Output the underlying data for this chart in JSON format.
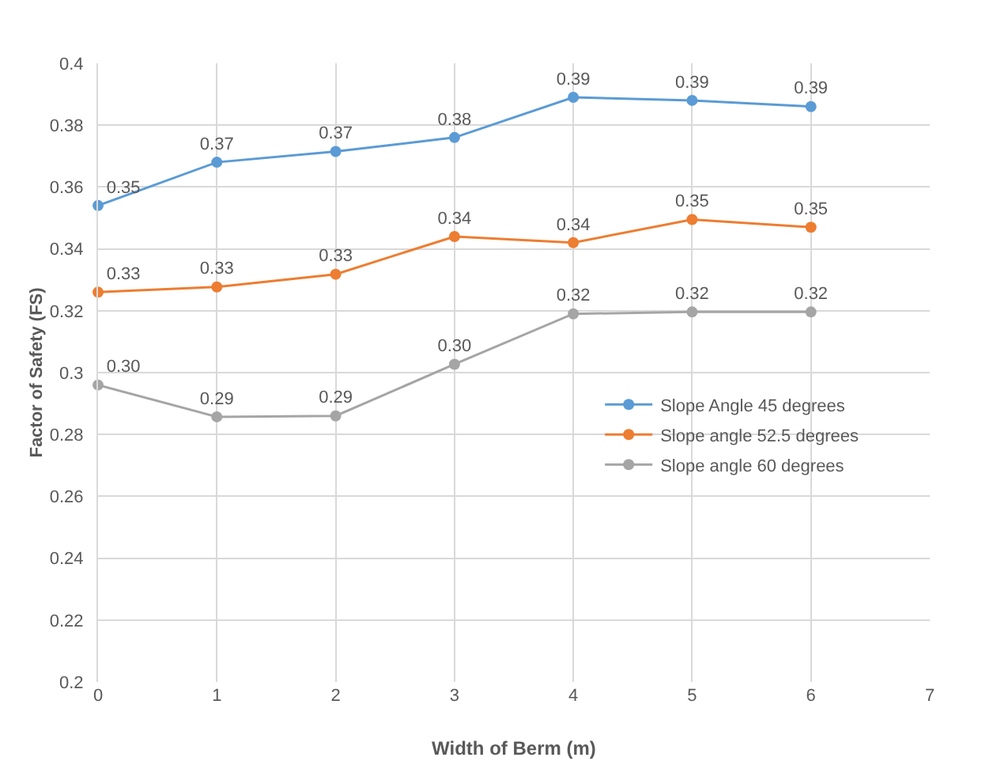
{
  "chart_data": {
    "type": "line",
    "xlabel": "Width of Berm (m)",
    "ylabel": "Factor of Safety (FS)",
    "x": [
      0,
      1,
      2,
      3,
      4,
      5,
      6
    ],
    "series": [
      {
        "name": "Slope Angle 45 degrees",
        "color": "#5b9bd5",
        "values": [
          0.354,
          0.368,
          0.3715,
          0.376,
          0.389,
          0.388,
          0.386
        ],
        "value_labels": [
          "0.35",
          "0.37",
          "0.37",
          "0.38",
          "0.39",
          "0.39",
          "0.39"
        ]
      },
      {
        "name": "Slope angle 52.5 degrees",
        "color": "#ed7d31",
        "values": [
          0.326,
          0.3277,
          0.3318,
          0.344,
          0.342,
          0.3495,
          0.347
        ],
        "value_labels": [
          "0.33",
          "0.33",
          "0.33",
          "0.34",
          "0.34",
          "0.35",
          "0.35"
        ]
      },
      {
        "name": "Slope angle 60 degrees",
        "color": "#a5a5a5",
        "values": [
          0.296,
          0.2857,
          0.286,
          0.3027,
          0.319,
          0.3196,
          0.3196
        ],
        "value_labels": [
          "0.30",
          "0.29",
          "0.29",
          "0.30",
          "0.32",
          "0.32",
          "0.32"
        ]
      }
    ],
    "xlim": [
      0,
      7
    ],
    "xticks": [
      0,
      1,
      2,
      3,
      4,
      5,
      6,
      7
    ],
    "ylim": [
      0.2,
      0.4
    ],
    "yticks": [
      0.2,
      0.22,
      0.24,
      0.26,
      0.28,
      0.3,
      0.32,
      0.34,
      0.36,
      0.38,
      0.4
    ],
    "grid": true,
    "legend": "right",
    "marker": "circle",
    "line_style": "solid"
  }
}
